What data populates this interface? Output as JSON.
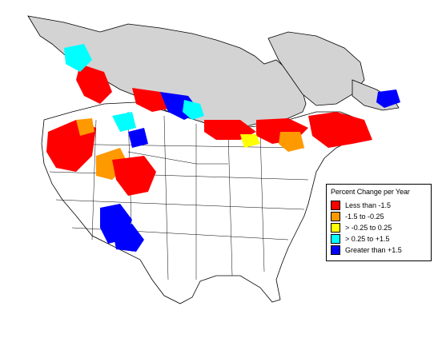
{
  "legend": {
    "title": "Percent Change per Year",
    "items": [
      {
        "label": "Less than -1.5",
        "color": "#ff0000"
      },
      {
        "label": "-1.5 to -0.25",
        "color": "#ff9900"
      },
      {
        "label": "> -0.25 to 0.25",
        "color": "#ffff00"
      },
      {
        "label": "> 0.25 to +1.5",
        "color": "#00ffff"
      },
      {
        "label": "Greater than +1.5",
        "color": "#0000ff"
      }
    ]
  },
  "colors": {
    "no_data_region": "#d3d3d3",
    "land": "#ffffff",
    "boundary": "#000000"
  }
}
